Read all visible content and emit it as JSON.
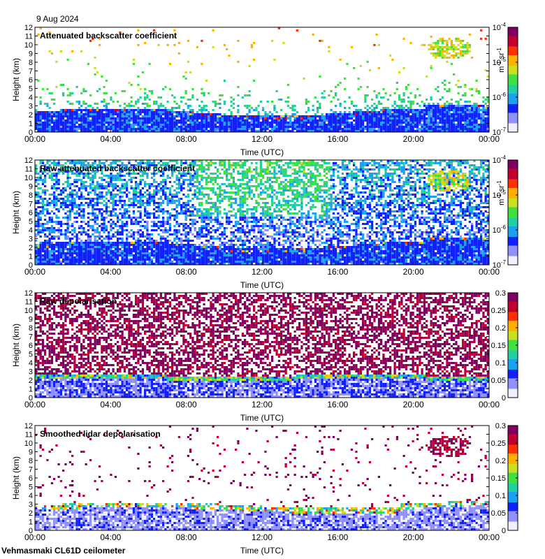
{
  "header": {
    "date": "9 Aug 2024"
  },
  "footer": {
    "site_instrument": "Vehmasmaki CL61D ceilometer"
  },
  "chart_data": [
    {
      "type": "heatmap",
      "title": "Attenuated backscatter coefficient",
      "xlabel": "Time (UTC)",
      "ylabel": "Height (km)",
      "x_ticks": [
        "00:00",
        "04:00",
        "08:00",
        "12:00",
        "16:00",
        "20:00",
        "00:00"
      ],
      "xlim_hours": [
        0,
        24
      ],
      "y_ticks": [
        0,
        1,
        2,
        3,
        4,
        5,
        6,
        7,
        8,
        9,
        10,
        11,
        12
      ],
      "ylim_km": [
        0,
        12
      ],
      "colorbar": {
        "scale": "log",
        "range": [
          1e-07,
          0.0001
        ],
        "ticks": [
          {
            "base": "10",
            "exp": "-4"
          },
          {
            "base": "10",
            "exp": "-5"
          },
          {
            "base": "10",
            "exp": "-6"
          },
          {
            "base": "10",
            "exp": "-7"
          }
        ],
        "units": {
          "m": "m",
          "m_exp": "-1",
          "sr": "sr",
          "sr_exp": "-1"
        }
      },
      "colormap": [
        "#f0f0ff",
        "#9090ff",
        "#1020ff",
        "#1ca0f0",
        "#20d0a0",
        "#40e040",
        "#c8e020",
        "#ffb000",
        "#ff3000",
        "#c00030",
        "#800060"
      ]
    },
    {
      "type": "heatmap",
      "title": "Raw attenuated backscatter coefficient",
      "xlabel": "Time (UTC)",
      "ylabel": "Height (km)",
      "x_ticks": [
        "00:00",
        "04:00",
        "08:00",
        "12:00",
        "16:00",
        "20:00",
        "00:00"
      ],
      "xlim_hours": [
        0,
        24
      ],
      "y_ticks": [
        0,
        1,
        2,
        3,
        4,
        5,
        6,
        7,
        8,
        9,
        10,
        11,
        12
      ],
      "ylim_km": [
        0,
        12
      ],
      "colorbar": {
        "scale": "log",
        "range": [
          1e-07,
          0.0001
        ],
        "ticks": [
          {
            "base": "10",
            "exp": "-4"
          },
          {
            "base": "10",
            "exp": "-5"
          },
          {
            "base": "10",
            "exp": "-6"
          },
          {
            "base": "10",
            "exp": "-7"
          }
        ],
        "units": {
          "m": "m",
          "m_exp": "-1",
          "sr": "sr",
          "sr_exp": "-1"
        }
      },
      "colormap": [
        "#f0f0ff",
        "#9090ff",
        "#1020ff",
        "#1ca0f0",
        "#20d0a0",
        "#40e040",
        "#c8e020",
        "#ffb000",
        "#ff3000",
        "#c00030",
        "#800060"
      ]
    },
    {
      "type": "heatmap",
      "title": "Raw depolarisation",
      "xlabel": "Time (UTC)",
      "ylabel": "Height (km)",
      "x_ticks": [
        "00:00",
        "04:00",
        "08:00",
        "12:00",
        "16:00",
        "20:00",
        "00:00"
      ],
      "xlim_hours": [
        0,
        24
      ],
      "y_ticks": [
        0,
        1,
        2,
        3,
        4,
        5,
        6,
        7,
        8,
        9,
        10,
        11,
        12
      ],
      "ylim_km": [
        0,
        12
      ],
      "colorbar": {
        "scale": "linear",
        "range": [
          0,
          0.3
        ],
        "ticks": [
          "0.3",
          "0.25",
          "0.2",
          "0.15",
          "0.1",
          "0.05",
          "0"
        ]
      },
      "colormap": [
        "#f0f0ff",
        "#9090ff",
        "#1020ff",
        "#1ca0f0",
        "#20d0a0",
        "#40e040",
        "#c8e020",
        "#ffb000",
        "#ff3000",
        "#c00030",
        "#800060"
      ]
    },
    {
      "type": "heatmap",
      "title": "Smoothed lidar depolarisation",
      "xlabel": "Time (UTC)",
      "ylabel": "Height (km)",
      "x_ticks": [
        "00:00",
        "04:00",
        "08:00",
        "12:00",
        "16:00",
        "20:00",
        "00:00"
      ],
      "xlim_hours": [
        0,
        24
      ],
      "y_ticks": [
        0,
        1,
        2,
        3,
        4,
        5,
        6,
        7,
        8,
        9,
        10,
        11,
        12
      ],
      "ylim_km": [
        0,
        12
      ],
      "colorbar": {
        "scale": "linear",
        "range": [
          0,
          0.3
        ],
        "ticks": [
          "0.3",
          "0.25",
          "0.2",
          "0.15",
          "0.1",
          "0.05",
          "0"
        ]
      },
      "colormap": [
        "#f0f0ff",
        "#9090ff",
        "#1020ff",
        "#1ca0f0",
        "#20d0a0",
        "#40e040",
        "#c8e020",
        "#ffb000",
        "#ff3000",
        "#c00030",
        "#800060"
      ]
    }
  ]
}
